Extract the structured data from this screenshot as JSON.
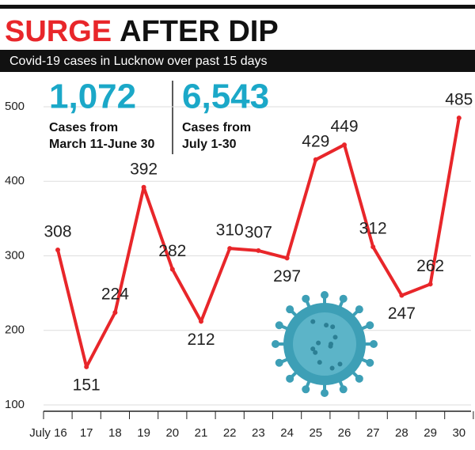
{
  "chart_data": {
    "type": "line",
    "title_parts": [
      "SURGE",
      "AFTER DIP"
    ],
    "subtitle": "Covid-19 cases in Lucknow over past 15 days",
    "annotations": [
      {
        "number": "1,072",
        "lines": [
          "Cases from",
          "March 11-June 30"
        ]
      },
      {
        "number": "6,543",
        "lines": [
          "Cases from",
          "July 1-30"
        ]
      }
    ],
    "categories": [
      "July 16",
      "17",
      "18",
      "19",
      "20",
      "21",
      "22",
      "23",
      "24",
      "25",
      "26",
      "27",
      "28",
      "29",
      "30"
    ],
    "values": [
      308,
      151,
      224,
      392,
      282,
      212,
      310,
      307,
      297,
      429,
      449,
      312,
      247,
      262,
      485
    ],
    "color": "#e8262a",
    "ylim": [
      100,
      500
    ],
    "yticks": [
      100,
      200,
      300,
      400,
      500
    ],
    "grid": true
  }
}
